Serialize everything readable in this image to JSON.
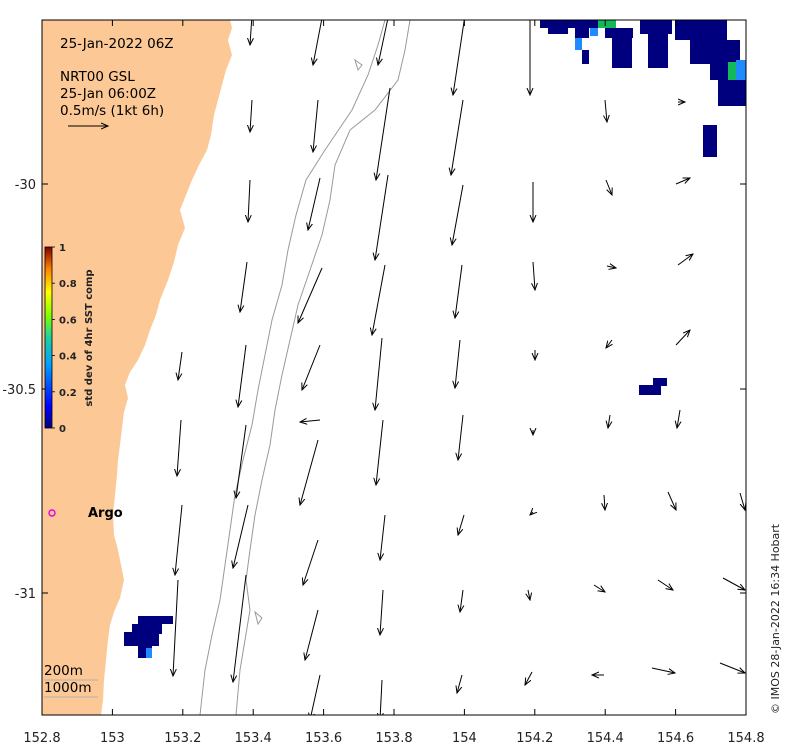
{
  "annotations": {
    "datetime": "25-Jan-2022 06Z",
    "product": "NRT00 GSL",
    "product_time": "25-Jan 06:00Z",
    "scale_arrow_label": "0.5m/s (1kt 6h)",
    "argo_label": "Argo",
    "contour_200": "200m",
    "contour_1000": "1000m",
    "copyright": "© IMOS 28-Jan-2022 16:34 Hobart"
  },
  "axes": {
    "x_ticks": [
      "152.8",
      "153",
      "153.2",
      "153.4",
      "153.6",
      "153.8",
      "154",
      "154.2",
      "154.4",
      "154.6",
      "154.8"
    ],
    "y_ticks": [
      "-30",
      "-30.5",
      "-31"
    ],
    "x_range": [
      152.8,
      154.8
    ],
    "y_range": [
      -31.3,
      -29.6
    ]
  },
  "colorbar": {
    "label": "std dev of 4hr SST comp",
    "ticks": [
      "0",
      "0.2",
      "0.4",
      "0.6",
      "0.8",
      "1"
    ],
    "range": [
      0,
      1
    ]
  },
  "colors": {
    "land": "#fcc896",
    "argo_marker": "#e000e0",
    "sst_low": "#00007f",
    "sst_mid": "#1e8cff",
    "sst_green": "#12b85a",
    "contour": "#9a9a9a"
  }
}
